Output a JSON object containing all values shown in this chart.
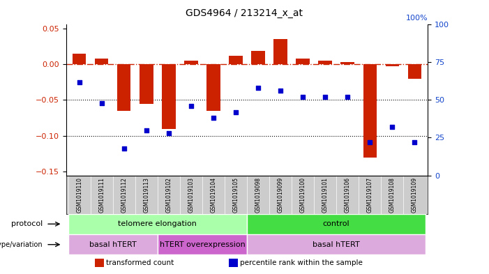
{
  "title": "GDS4964 / 213214_x_at",
  "samples": [
    "GSM1019110",
    "GSM1019111",
    "GSM1019112",
    "GSM1019113",
    "GSM1019102",
    "GSM1019103",
    "GSM1019104",
    "GSM1019105",
    "GSM1019098",
    "GSM1019099",
    "GSM1019100",
    "GSM1019101",
    "GSM1019106",
    "GSM1019107",
    "GSM1019108",
    "GSM1019109"
  ],
  "bar_values": [
    0.015,
    0.008,
    -0.065,
    -0.055,
    -0.09,
    0.005,
    -0.065,
    0.012,
    0.018,
    0.035,
    0.008,
    0.005,
    0.003,
    -0.13,
    -0.003,
    -0.02
  ],
  "scatter_values_pct": [
    62,
    48,
    18,
    30,
    28,
    46,
    38,
    42,
    58,
    56,
    52,
    52,
    52,
    22,
    32,
    22
  ],
  "ylim_left": [
    -0.155,
    0.055
  ],
  "ylim_right": [
    0,
    100
  ],
  "yticks_left": [
    -0.15,
    -0.1,
    -0.05,
    0.0,
    0.05
  ],
  "yticks_right": [
    0,
    25,
    50,
    75,
    100
  ],
  "bar_color": "#cc2200",
  "scatter_color": "#0000cc",
  "hline_color": "#cc2200",
  "bg_color": "#ffffff",
  "protocol_groups": [
    {
      "label": "telomere elongation",
      "start": 0,
      "end": 8,
      "color": "#aaffaa"
    },
    {
      "label": "control",
      "start": 8,
      "end": 16,
      "color": "#44dd44"
    }
  ],
  "genotype_groups": [
    {
      "label": "basal hTERT",
      "start": 0,
      "end": 4,
      "color": "#ddaadd"
    },
    {
      "label": "hTERT overexpression",
      "start": 4,
      "end": 8,
      "color": "#cc66cc"
    },
    {
      "label": "basal hTERT",
      "start": 8,
      "end": 16,
      "color": "#ddaadd"
    }
  ],
  "legend_items": [
    {
      "label": "transformed count",
      "color": "#cc2200",
      "marker": "s"
    },
    {
      "label": "percentile rank within the sample",
      "color": "#0000cc",
      "marker": "s"
    }
  ],
  "row_labels": [
    "protocol",
    "genotype/variation"
  ],
  "right_axis_top_label": "100%"
}
